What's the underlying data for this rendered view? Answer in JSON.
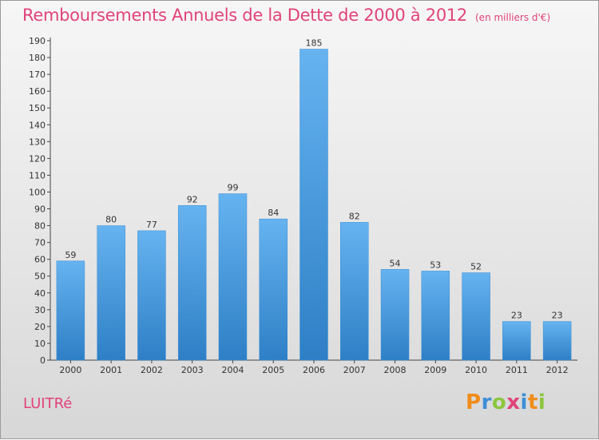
{
  "title": "Remboursements Annuels de la Dette de 2000 à 2012",
  "unit": "(en milliers d'€)",
  "commune": "LUITRé",
  "brand": {
    "letters": [
      "P",
      "r",
      "o",
      "x",
      "i",
      "t",
      "i"
    ],
    "colors": [
      "#f08c1a",
      "#3d8fd6",
      "#8cc63f",
      "#e0437a",
      "#3d8fd6",
      "#f08c1a",
      "#8cc63f"
    ]
  },
  "colors": {
    "bar": "#4a9ee0",
    "bar_light": "#66b3f0",
    "bar_dark": "#2e7fc6",
    "title": "#e0437a"
  },
  "chart_data": {
    "type": "bar",
    "categories": [
      "2000",
      "2001",
      "2002",
      "2003",
      "2004",
      "2005",
      "2006",
      "2007",
      "2008",
      "2009",
      "2010",
      "2011",
      "2012"
    ],
    "values": [
      59,
      80,
      77,
      92,
      99,
      84,
      185,
      82,
      54,
      53,
      52,
      23,
      23
    ],
    "title": "Remboursements Annuels de la Dette de 2000 à 2012",
    "xlabel": "",
    "ylabel": "",
    "ylim": [
      0,
      190
    ],
    "yticks": [
      0,
      10,
      20,
      30,
      40,
      50,
      60,
      70,
      80,
      90,
      100,
      110,
      120,
      130,
      140,
      150,
      160,
      170,
      180,
      190
    ],
    "grid": false,
    "data_labels": true
  }
}
